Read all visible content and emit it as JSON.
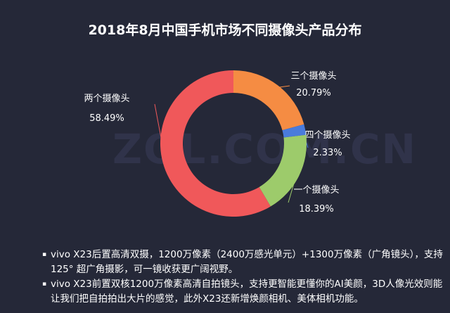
{
  "chart_data": {
    "type": "pie",
    "variant": "donut",
    "title": "2018年8月中国手机市场不同摄像头产品分布",
    "slices": [
      {
        "label": "三个摄像头",
        "value": 20.79,
        "value_label": "20.79%",
        "color": "#F58C43"
      },
      {
        "label": "四个摄像头",
        "value": 2.33,
        "value_label": "2.33%",
        "color": "#4A7BDB"
      },
      {
        "label": "一个摄像头",
        "value": 18.39,
        "value_label": "18.39%",
        "color": "#9DCB6B"
      },
      {
        "label": "两个摄像头",
        "value": 58.49,
        "value_label": "58.49%",
        "color": "#F0585A"
      }
    ]
  },
  "watermark": "ZOL.COM.CN",
  "notes": [
    {
      "bullet": "▪",
      "text": "vivo X23后置高清双摄，1200万像素（2400万感光单元）+1300万像素（广角镜头），支持125° 超广角摄影，可一镜收获更广阔视野。"
    },
    {
      "bullet": "▪",
      "text": "vivo X23前置双核1200万像素高清自拍镜头，支持更智能更懂你的AI美颜，3D人像光效则能让我们把自拍拍出大片的感觉，此外X23还新增焕颜相机、美体相机功能。"
    }
  ]
}
